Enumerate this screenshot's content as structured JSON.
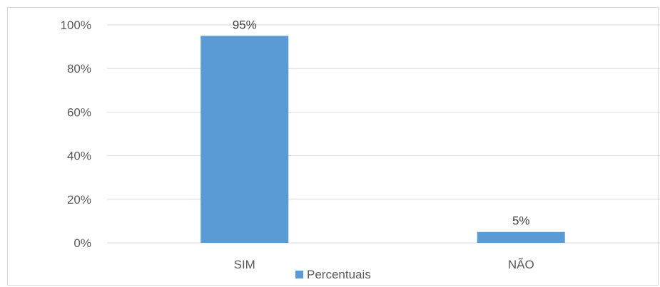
{
  "chart_data": {
    "type": "bar",
    "categories": [
      "SIM",
      "NÃO"
    ],
    "series": [
      {
        "name": "Percentuais",
        "values": [
          95,
          5
        ],
        "color": "#5b9bd5"
      }
    ],
    "data_labels": [
      "95%",
      "5%"
    ],
    "y_ticks": [
      "0%",
      "20%",
      "40%",
      "60%",
      "80%",
      "100%"
    ],
    "ylim": [
      0,
      100
    ],
    "grid": true,
    "legend": "bottom"
  }
}
